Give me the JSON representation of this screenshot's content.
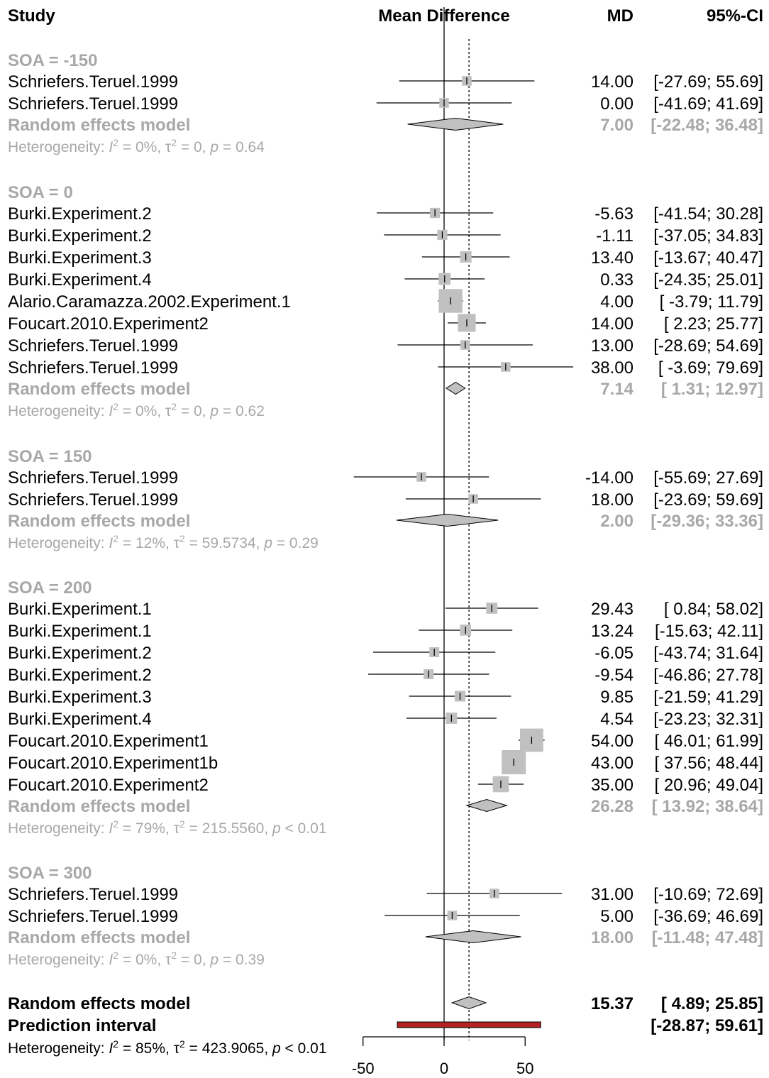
{
  "chart_data": {
    "type": "forest",
    "headers": {
      "study": "Study",
      "plot": "Mean Difference",
      "md": "MD",
      "ci": "95%-CI"
    },
    "x_axis": {
      "ticks": [
        -50,
        0,
        50
      ],
      "tick_labels": [
        "-50",
        "0",
        "50"
      ],
      "range": [
        -50,
        50
      ],
      "reference_line": 0,
      "summary_line": 15.37
    },
    "subgroups": [
      {
        "label": "SOA = -150",
        "studies": [
          {
            "name": "Schriefers.Teruel.1999",
            "md": 14.0,
            "lower": -27.69,
            "upper": 55.69,
            "md_text": "14.00",
            "ci_text": "[-27.69; 55.69]"
          },
          {
            "name": "Schriefers.Teruel.1999",
            "md": 0.0,
            "lower": -41.69,
            "upper": 41.69,
            "md_text": "0.00",
            "ci_text": "[-41.69; 41.69]"
          }
        ],
        "random": {
          "label": "Random effects model",
          "md": 7.0,
          "lower": -22.48,
          "upper": 36.48,
          "md_text": "7.00",
          "ci_text": "[-22.48; 36.48]"
        },
        "het": {
          "prefix": "Heterogeneity: ",
          "I": "I",
          "sup1": "2",
          "mid": " = 0%, τ",
          "sup2": "2",
          "tail": " = 0, ",
          "p": "p",
          "pval": " = 0.64"
        }
      },
      {
        "label": "SOA = 0",
        "studies": [
          {
            "name": "Burki.Experiment.2",
            "md": -5.63,
            "lower": -41.54,
            "upper": 30.28,
            "md_text": "-5.63",
            "ci_text": "[-41.54; 30.28]"
          },
          {
            "name": "Burki.Experiment.2",
            "md": -1.11,
            "lower": -37.05,
            "upper": 34.83,
            "md_text": "-1.11",
            "ci_text": "[-37.05; 34.83]"
          },
          {
            "name": "Burki.Experiment.3",
            "md": 13.4,
            "lower": -13.67,
            "upper": 40.47,
            "md_text": "13.40",
            "ci_text": "[-13.67; 40.47]"
          },
          {
            "name": "Burki.Experiment.4",
            "md": 0.33,
            "lower": -24.35,
            "upper": 25.01,
            "md_text": "0.33",
            "ci_text": "[-24.35; 25.01]"
          },
          {
            "name": "Alario.Caramazza.2002.Experiment.1",
            "md": 4.0,
            "lower": -3.79,
            "upper": 11.79,
            "md_text": "4.00",
            "ci_text": "[ -3.79; 11.79]"
          },
          {
            "name": "Foucart.2010.Experiment2",
            "md": 14.0,
            "lower": 2.23,
            "upper": 25.77,
            "md_text": "14.00",
            "ci_text": "[ 2.23; 25.77]"
          },
          {
            "name": "Schriefers.Teruel.1999",
            "md": 13.0,
            "lower": -28.69,
            "upper": 54.69,
            "md_text": "13.00",
            "ci_text": "[-28.69; 54.69]"
          },
          {
            "name": "Schriefers.Teruel.1999",
            "md": 38.0,
            "lower": -3.69,
            "upper": 79.69,
            "md_text": "38.00",
            "ci_text": "[ -3.69; 79.69]"
          }
        ],
        "random": {
          "label": "Random effects model",
          "md": 7.14,
          "lower": 1.31,
          "upper": 12.97,
          "md_text": "7.14",
          "ci_text": "[ 1.31; 12.97]"
        },
        "het": {
          "prefix": "Heterogeneity: ",
          "I": "I",
          "sup1": "2",
          "mid": " = 0%, τ",
          "sup2": "2",
          "tail": " = 0, ",
          "p": "p",
          "pval": " = 0.62"
        }
      },
      {
        "label": "SOA = 150",
        "studies": [
          {
            "name": "Schriefers.Teruel.1999",
            "md": -14.0,
            "lower": -55.69,
            "upper": 27.69,
            "md_text": "-14.00",
            "ci_text": "[-55.69; 27.69]"
          },
          {
            "name": "Schriefers.Teruel.1999",
            "md": 18.0,
            "lower": -23.69,
            "upper": 59.69,
            "md_text": "18.00",
            "ci_text": "[-23.69; 59.69]"
          }
        ],
        "random": {
          "label": "Random effects model",
          "md": 2.0,
          "lower": -29.36,
          "upper": 33.36,
          "md_text": "2.00",
          "ci_text": "[-29.36; 33.36]"
        },
        "het": {
          "prefix": "Heterogeneity: ",
          "I": "I",
          "sup1": "2",
          "mid": " = 12%, τ",
          "sup2": "2",
          "tail": " = 59.5734, ",
          "p": "p",
          "pval": " = 0.29"
        }
      },
      {
        "label": "SOA = 200",
        "studies": [
          {
            "name": "Burki.Experiment.1",
            "md": 29.43,
            "lower": 0.84,
            "upper": 58.02,
            "md_text": "29.43",
            "ci_text": "[ 0.84; 58.02]"
          },
          {
            "name": "Burki.Experiment.1",
            "md": 13.24,
            "lower": -15.63,
            "upper": 42.11,
            "md_text": "13.24",
            "ci_text": "[-15.63; 42.11]"
          },
          {
            "name": "Burki.Experiment.2",
            "md": -6.05,
            "lower": -43.74,
            "upper": 31.64,
            "md_text": "-6.05",
            "ci_text": "[-43.74; 31.64]"
          },
          {
            "name": "Burki.Experiment.2",
            "md": -9.54,
            "lower": -46.86,
            "upper": 27.78,
            "md_text": "-9.54",
            "ci_text": "[-46.86; 27.78]"
          },
          {
            "name": "Burki.Experiment.3",
            "md": 9.85,
            "lower": -21.59,
            "upper": 41.29,
            "md_text": "9.85",
            "ci_text": "[-21.59; 41.29]"
          },
          {
            "name": "Burki.Experiment.4",
            "md": 4.54,
            "lower": -23.23,
            "upper": 32.31,
            "md_text": "4.54",
            "ci_text": "[-23.23; 32.31]"
          },
          {
            "name": "Foucart.2010.Experiment1",
            "md": 54.0,
            "lower": 46.01,
            "upper": 61.99,
            "md_text": "54.00",
            "ci_text": "[ 46.01; 61.99]"
          },
          {
            "name": "Foucart.2010.Experiment1b",
            "md": 43.0,
            "lower": 37.56,
            "upper": 48.44,
            "md_text": "43.00",
            "ci_text": "[ 37.56; 48.44]"
          },
          {
            "name": "Foucart.2010.Experiment2",
            "md": 35.0,
            "lower": 20.96,
            "upper": 49.04,
            "md_text": "35.00",
            "ci_text": "[ 20.96; 49.04]"
          }
        ],
        "random": {
          "label": "Random effects model",
          "md": 26.28,
          "lower": 13.92,
          "upper": 38.64,
          "md_text": "26.28",
          "ci_text": "[ 13.92; 38.64]"
        },
        "het": {
          "prefix": "Heterogeneity: ",
          "I": "I",
          "sup1": "2",
          "mid": " = 79%, τ",
          "sup2": "2",
          "tail": " = 215.5560, ",
          "p": "p",
          "pval": " < 0.01"
        }
      },
      {
        "label": "SOA = 300",
        "studies": [
          {
            "name": "Schriefers.Teruel.1999",
            "md": 31.0,
            "lower": -10.69,
            "upper": 72.69,
            "md_text": "31.00",
            "ci_text": "[-10.69; 72.69]"
          },
          {
            "name": "Schriefers.Teruel.1999",
            "md": 5.0,
            "lower": -36.69,
            "upper": 46.69,
            "md_text": "5.00",
            "ci_text": "[-36.69; 46.69]"
          }
        ],
        "random": {
          "label": "Random effects model",
          "md": 18.0,
          "lower": -11.48,
          "upper": 47.48,
          "md_text": "18.00",
          "ci_text": "[-11.48; 47.48]"
        },
        "het": {
          "prefix": "Heterogeneity: ",
          "I": "I",
          "sup1": "2",
          "mid": " = 0%, τ",
          "sup2": "2",
          "tail": " = 0, ",
          "p": "p",
          "pval": " = 0.39"
        }
      }
    ],
    "overall": {
      "label": "Random effects model",
      "md": 15.37,
      "lower": 4.89,
      "upper": 25.85,
      "md_text": "15.37",
      "ci_text": "[ 4.89; 25.85]"
    },
    "prediction": {
      "label": "Prediction interval",
      "lower": -28.87,
      "upper": 59.61,
      "ci_text": "[-28.87; 59.61]"
    },
    "overall_het": {
      "prefix": "Heterogeneity: ",
      "I": "I",
      "sup1": "2",
      "mid": " = 85%, τ",
      "sup2": "2",
      "tail": " = 423.9065, ",
      "p": "p",
      "pval": " < 0.01"
    },
    "colors": {
      "group_text": "#a8a8a8",
      "square_fill": "#c0c0c0",
      "diamond_fill": "#c0c0c0",
      "prediction_fill": "#b22222"
    }
  }
}
